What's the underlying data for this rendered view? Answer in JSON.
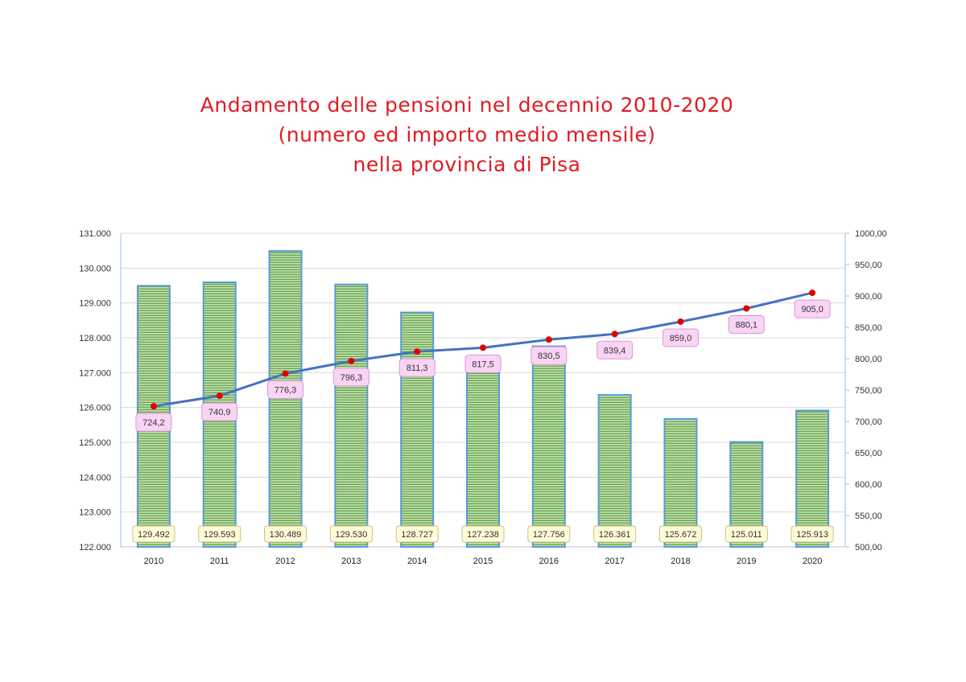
{
  "title": {
    "line1": "Andamento delle pensioni nel decennio 2010-2020",
    "line2": "(numero ed importo medio mensile)",
    "line3": "nella provincia di Pisa"
  },
  "colors": {
    "title": "#e11b22",
    "bar_fill": "#a9d18e",
    "bar_stripe": "#6aa84f",
    "bar_border": "#5b9bd5",
    "line": "#4472c4",
    "marker": "#e00000",
    "bar_label_bg": "#fffbd6",
    "bar_label_border": "#c9c28a",
    "line_label_bg": "#f9d4f5",
    "line_label_border": "#d89ad1",
    "axis": "#9dc3e6"
  },
  "chart_data": {
    "type": "bar",
    "categories": [
      "2010",
      "2011",
      "2012",
      "2013",
      "2014",
      "2015",
      "2016",
      "2017",
      "2018",
      "2019",
      "2020"
    ],
    "series": [
      {
        "axis": "left",
        "type": "bar",
        "values": [
          129492,
          129593,
          130489,
          129530,
          128727,
          127238,
          127756,
          126361,
          125672,
          125011,
          125913
        ],
        "labels": [
          "129.492",
          "129.593",
          "130.489",
          "129.530",
          "128.727",
          "127.238",
          "127.756",
          "126.361",
          "125.672",
          "125.011",
          "125.913"
        ]
      },
      {
        "axis": "right",
        "type": "line",
        "values": [
          724.2,
          740.9,
          776.3,
          796.3,
          811.3,
          817.5,
          830.5,
          839.4,
          859.0,
          880.1,
          905.0
        ],
        "labels": [
          "724,2",
          "740,9",
          "776,3",
          "796,3",
          "811,3",
          "817,5",
          "830,5",
          "839,4",
          "859,0",
          "880,1",
          "905,0"
        ]
      }
    ],
    "y_left": {
      "range": [
        122000,
        131000
      ],
      "ticks": [
        "122.000",
        "123.000",
        "124.000",
        "125.000",
        "126.000",
        "127.000",
        "128.000",
        "129.000",
        "130.000",
        "131.000"
      ]
    },
    "y_right": {
      "range": [
        500,
        1000
      ],
      "ticks": [
        "500,00",
        "550,00",
        "600,00",
        "650,00",
        "700,00",
        "750,00",
        "800,00",
        "850,00",
        "900,00",
        "950,00",
        "1000,00"
      ]
    },
    "grid": true,
    "legend": "none"
  }
}
